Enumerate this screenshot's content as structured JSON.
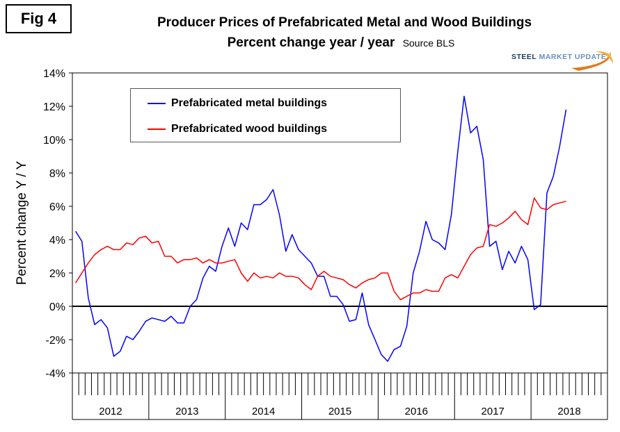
{
  "figure_label": "Fig 4",
  "logo": {
    "text_dark": "STEEL",
    "text_light": "MARKET UPDATE"
  },
  "chart_data": {
    "type": "line",
    "title": "Producer Prices of Prefabricated Metal and Wood Buildings",
    "subtitle": "Percent change year / year",
    "source": "Source BLS",
    "xlabel": "",
    "ylabel": "Percent change Y / Y",
    "ylim": [
      -4,
      14
    ],
    "yticks": [
      -4,
      -2,
      0,
      2,
      4,
      6,
      8,
      10,
      12,
      14
    ],
    "ytick_labels": [
      "-4%",
      "-2%",
      "0%",
      "2%",
      "4%",
      "6%",
      "8%",
      "10%",
      "12%",
      "14%"
    ],
    "year_labels": [
      "2012",
      "2013",
      "2014",
      "2015",
      "2016",
      "2017",
      "2018"
    ],
    "x_start": "2012-01",
    "months_count": 84,
    "grid": false,
    "zero_line": true,
    "legend_position": "top-left",
    "series": [
      {
        "name": "Prefabricated metal buildings",
        "color": "#0000ff",
        "values": [
          4.5,
          3.9,
          0.5,
          -1.1,
          -0.8,
          -1.3,
          -3.0,
          -2.7,
          -1.8,
          -2.0,
          -1.5,
          -0.9,
          -0.7,
          -0.8,
          -0.9,
          -0.6,
          -1.0,
          -1.0,
          0.0,
          0.4,
          1.7,
          2.4,
          2.1,
          3.6,
          4.7,
          3.6,
          5.0,
          4.6,
          6.1,
          6.1,
          6.4,
          7.0,
          5.5,
          3.3,
          4.3,
          3.4,
          3.0,
          2.6,
          1.8,
          1.8,
          0.6,
          0.6,
          0.1,
          -0.9,
          -0.8,
          0.8,
          -1.1,
          -2.0,
          -2.9,
          -3.3,
          -2.6,
          -2.4,
          -1.2,
          2.0,
          3.3,
          5.1,
          4.0,
          3.8,
          3.4,
          5.5,
          9.3,
          12.6,
          10.4,
          10.8,
          8.8,
          3.6,
          3.9,
          2.2,
          3.3,
          2.6,
          3.6,
          2.8,
          -0.2,
          0.1,
          6.8,
          7.8,
          9.6,
          11.8,
          null,
          null,
          null,
          null,
          null,
          null
        ]
      },
      {
        "name": "Prefabricated wood buildings",
        "color": "#ff0000",
        "values": [
          1.4,
          2.0,
          2.6,
          3.1,
          3.4,
          3.6,
          3.4,
          3.4,
          3.8,
          3.7,
          4.1,
          4.2,
          3.8,
          3.9,
          3.0,
          3.0,
          2.6,
          2.8,
          2.8,
          2.9,
          2.6,
          2.8,
          2.6,
          2.6,
          2.7,
          2.8,
          2.0,
          1.5,
          2.0,
          1.7,
          1.8,
          1.7,
          2.0,
          1.8,
          1.8,
          1.7,
          1.3,
          1.0,
          1.8,
          2.1,
          1.8,
          1.7,
          1.6,
          1.3,
          1.1,
          1.4,
          1.6,
          1.7,
          2.0,
          2.0,
          0.9,
          0.4,
          0.6,
          0.8,
          0.8,
          1.0,
          0.9,
          0.9,
          1.7,
          1.9,
          1.7,
          2.4,
          3.1,
          3.5,
          3.6,
          4.9,
          4.8,
          5.0,
          5.3,
          5.7,
          5.2,
          4.9,
          6.5,
          5.9,
          5.8,
          6.1,
          6.2,
          6.3,
          null,
          null,
          null,
          null,
          null,
          null
        ]
      }
    ]
  }
}
